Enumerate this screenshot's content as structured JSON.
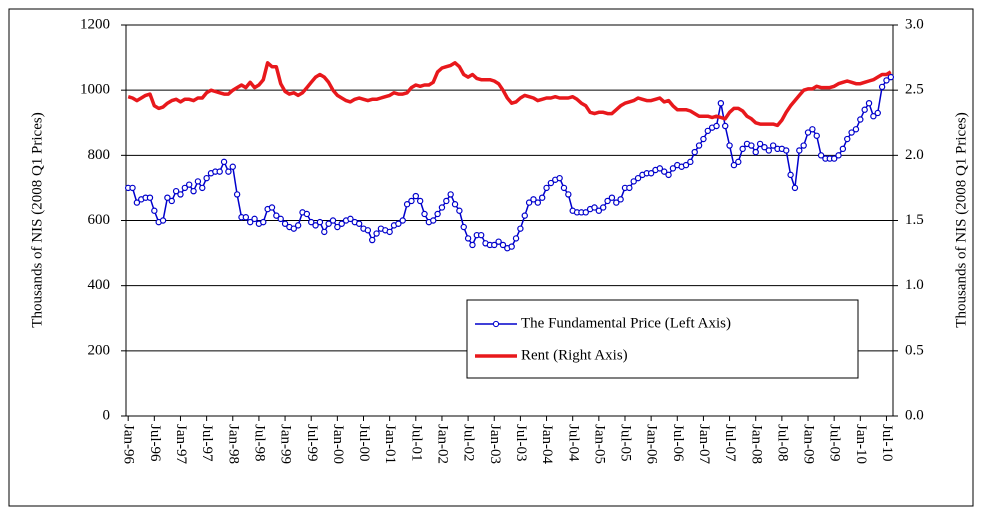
{
  "chart_data": {
    "type": "line",
    "y_label": "Thousands of NIS (2008 Q1 Prices)",
    "y2_label": "Thousands of NIS (2008 Q1 Prices)",
    "categories": [
      "Jan-96",
      null,
      null,
      null,
      null,
      null,
      "Jul-96",
      null,
      null,
      null,
      null,
      null,
      "Jan-97",
      null,
      null,
      null,
      null,
      null,
      "Jul-97",
      null,
      null,
      null,
      null,
      null,
      "Jan-98",
      null,
      null,
      null,
      null,
      null,
      "Jul-98",
      null,
      null,
      null,
      null,
      null,
      "Jan-99",
      null,
      null,
      null,
      null,
      null,
      "Jul-99",
      null,
      null,
      null,
      null,
      null,
      "Jan-00",
      null,
      null,
      null,
      null,
      null,
      "Jul-00",
      null,
      null,
      null,
      null,
      null,
      "Jan-01",
      null,
      null,
      null,
      null,
      null,
      "Jul-01",
      null,
      null,
      null,
      null,
      null,
      "Jan-02",
      null,
      null,
      null,
      null,
      null,
      "Jul-02",
      null,
      null,
      null,
      null,
      null,
      "Jan-03",
      null,
      null,
      null,
      null,
      null,
      "Jul-03",
      null,
      null,
      null,
      null,
      null,
      "Jan-04",
      null,
      null,
      null,
      null,
      null,
      "Jul-04",
      null,
      null,
      null,
      null,
      null,
      "Jan-05",
      null,
      null,
      null,
      null,
      null,
      "Jul-05",
      null,
      null,
      null,
      null,
      null,
      "Jan-06",
      null,
      null,
      null,
      null,
      null,
      "Jul-06",
      null,
      null,
      null,
      null,
      null,
      "Jan-07",
      null,
      null,
      null,
      null,
      null,
      "Jul-07",
      null,
      null,
      null,
      null,
      null,
      "Jan-08",
      null,
      null,
      null,
      null,
      null,
      "Jul-08",
      null,
      null,
      null,
      null,
      null,
      "Jan-09",
      null,
      null,
      null,
      null,
      null,
      "Jul-09",
      null,
      null,
      null,
      null,
      null,
      "Jan-10",
      null,
      null,
      null,
      null,
      null,
      "Jul-10",
      null
    ],
    "series": [
      {
        "name": "The Fundamental Price (Left Axis)",
        "color": "#0000cc",
        "axis": "y",
        "marker": true,
        "values": [
          700,
          700,
          655,
          665,
          670,
          670,
          630,
          595,
          600,
          670,
          660,
          690,
          680,
          700,
          710,
          690,
          720,
          700,
          730,
          745,
          750,
          750,
          780,
          750,
          765,
          680,
          610,
          610,
          595,
          605,
          590,
          595,
          635,
          640,
          615,
          605,
          590,
          580,
          575,
          585,
          625,
          620,
          595,
          585,
          595,
          565,
          590,
          600,
          580,
          590,
          600,
          605,
          595,
          590,
          575,
          570,
          540,
          560,
          575,
          570,
          565,
          585,
          590,
          600,
          650,
          660,
          675,
          660,
          620,
          595,
          600,
          620,
          640,
          660,
          680,
          650,
          630,
          580,
          545,
          525,
          555,
          555,
          530,
          525,
          525,
          535,
          525,
          515,
          520,
          545,
          575,
          615,
          655,
          665,
          655,
          670,
          700,
          715,
          725,
          730,
          700,
          680,
          630,
          625,
          625,
          625,
          635,
          640,
          630,
          640,
          660,
          670,
          655,
          665,
          700,
          700,
          720,
          730,
          740,
          745,
          745,
          755,
          760,
          750,
          740,
          760,
          770,
          765,
          770,
          780,
          810,
          830,
          850,
          875,
          885,
          890,
          960,
          890,
          830,
          770,
          780,
          820,
          835,
          830,
          810,
          835,
          825,
          815,
          830,
          820,
          820,
          815,
          740,
          700,
          815,
          830,
          870,
          880,
          860,
          800,
          790,
          790,
          790,
          800,
          820,
          850,
          870,
          880,
          910,
          940,
          960,
          920,
          930,
          1010,
          1030,
          1040
        ]
      },
      {
        "name": "Rent (Right Axis)",
        "color": "#e8181c",
        "axis": "y2",
        "marker": false,
        "values": [
          2.45,
          2.44,
          2.42,
          2.44,
          2.46,
          2.47,
          2.38,
          2.36,
          2.37,
          2.4,
          2.42,
          2.43,
          2.41,
          2.43,
          2.43,
          2.42,
          2.44,
          2.44,
          2.48,
          2.5,
          2.49,
          2.48,
          2.47,
          2.47,
          2.5,
          2.52,
          2.54,
          2.52,
          2.56,
          2.52,
          2.54,
          2.58,
          2.71,
          2.68,
          2.68,
          2.55,
          2.49,
          2.47,
          2.48,
          2.46,
          2.48,
          2.52,
          2.56,
          2.6,
          2.62,
          2.6,
          2.56,
          2.5,
          2.46,
          2.44,
          2.42,
          2.41,
          2.43,
          2.44,
          2.43,
          2.42,
          2.43,
          2.43,
          2.44,
          2.45,
          2.46,
          2.48,
          2.47,
          2.47,
          2.48,
          2.52,
          2.54,
          2.53,
          2.54,
          2.54,
          2.56,
          2.64,
          2.67,
          2.68,
          2.69,
          2.71,
          2.68,
          2.62,
          2.6,
          2.62,
          2.59,
          2.58,
          2.58,
          2.58,
          2.57,
          2.55,
          2.5,
          2.44,
          2.4,
          2.41,
          2.44,
          2.46,
          2.45,
          2.44,
          2.42,
          2.43,
          2.44,
          2.44,
          2.45,
          2.44,
          2.44,
          2.44,
          2.45,
          2.43,
          2.4,
          2.38,
          2.33,
          2.32,
          2.33,
          2.33,
          2.32,
          2.32,
          2.35,
          2.38,
          2.4,
          2.41,
          2.42,
          2.44,
          2.43,
          2.42,
          2.42,
          2.43,
          2.44,
          2.41,
          2.42,
          2.38,
          2.35,
          2.35,
          2.35,
          2.34,
          2.32,
          2.3,
          2.3,
          2.3,
          2.29,
          2.3,
          2.29,
          2.28,
          2.33,
          2.36,
          2.36,
          2.34,
          2.3,
          2.28,
          2.25,
          2.24,
          2.24,
          2.24,
          2.24,
          2.23,
          2.27,
          2.33,
          2.38,
          2.42,
          2.46,
          2.5,
          2.51,
          2.51,
          2.53,
          2.52,
          2.52,
          2.52,
          2.53,
          2.55,
          2.56,
          2.57,
          2.56,
          2.55,
          2.55,
          2.56,
          2.57,
          2.58,
          2.6,
          2.62,
          2.62,
          2.64
        ]
      }
    ],
    "ylim": [
      0,
      1200
    ],
    "yticks": [
      0,
      200,
      400,
      600,
      800,
      1000,
      1200
    ],
    "y2lim": [
      0,
      3
    ],
    "y2ticks": [
      {
        "value": 0,
        "label": "0.0"
      },
      0.5,
      {
        "value": 1,
        "label": "1.0"
      },
      1.5,
      {
        "value": 2,
        "label": "2.0"
      },
      2.5,
      {
        "value": 3,
        "label": "3.0"
      }
    ],
    "grid": true,
    "legend": "lower right"
  }
}
